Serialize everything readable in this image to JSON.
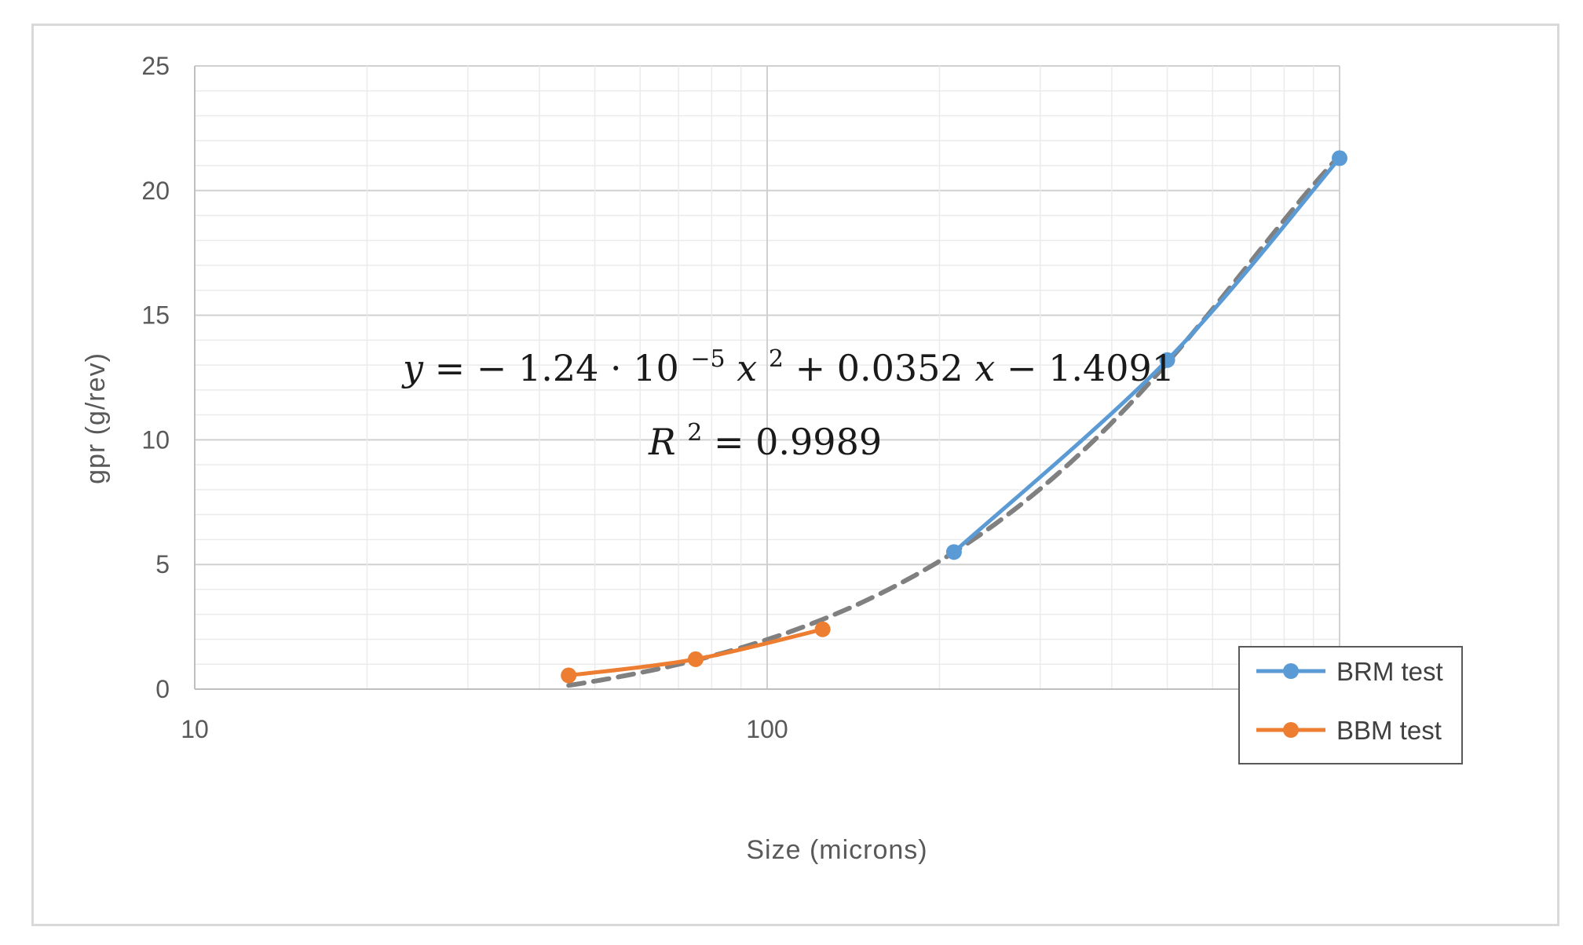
{
  "chart_data": {
    "type": "scatter",
    "xlabel": "Size  (microns)",
    "ylabel": "gpr (g/rev)",
    "x_scale": "log",
    "xlim": [
      10,
      1000
    ],
    "ylim": [
      0,
      25
    ],
    "x_ticks": [
      "10",
      "100",
      "1000"
    ],
    "y_ticks": [
      "0",
      "5",
      "10",
      "15",
      "20",
      "25"
    ],
    "grid": true,
    "legend_position": "bottom-right",
    "series": [
      {
        "name": "BRM test",
        "color": "#5B9BD5",
        "x": [
          212,
          500,
          1000
        ],
        "y": [
          5.5,
          13.2,
          21.3
        ]
      },
      {
        "name": "BBM test",
        "color": "#ED7D31",
        "x": [
          45,
          75,
          125
        ],
        "y": [
          0.55,
          1.2,
          2.4
        ]
      }
    ],
    "trendline": {
      "type": "polynomial",
      "color": "#808080",
      "style": "dashed",
      "x_range": [
        45,
        1000
      ],
      "coefficients": {
        "a": -1.24e-05,
        "b": 0.0352,
        "c": -1.4091
      },
      "equation_parts": {
        "lhs": "y",
        "eq": " = ",
        "minus": "−",
        "coef": "1.24 · 10",
        "exp": "−5",
        "x": "x",
        "sq": "2",
        "rest1": " + 0.0352",
        "rest2": " − 1.4091"
      },
      "r2_parts": {
        "r": "R",
        "sq": "2",
        "rest": " = 0.9989"
      }
    }
  }
}
